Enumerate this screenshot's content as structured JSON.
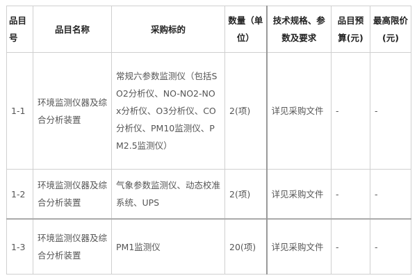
{
  "headers": [
    "品目号",
    "品目名称",
    "采购标的",
    "数量（单位）",
    "技术规格、参数及要求",
    "品目预算(元)",
    "最高限价(元)"
  ],
  "rows": [
    {
      "id": "1-1",
      "name": "环境监测仪器及综合分析装置",
      "target": "常规六参数监测仪（包括SO2分析仪、NO-NO2-NOx分析仪、O3分析仪、CO分析仪、PM10监测仪、PM2.5监测仪）",
      "qty": "2(项)",
      "spec": "详见采购文件",
      "budget": "-",
      "max": "-"
    },
    {
      "id": "1-2",
      "name": "环境监测仪器及综合分析装置",
      "target": "气象参数监测仪、动态校准系统、UPS",
      "qty": "2(项)",
      "spec": "详见采购文件",
      "budget": "-",
      "max": "-"
    },
    {
      "id": "1-3",
      "name": "环境监测仪器及综合分析装置",
      "target": "PM1监测仪",
      "qty": "20(项)",
      "spec": "详见采购文件",
      "budget": "-",
      "max": "-"
    }
  ]
}
